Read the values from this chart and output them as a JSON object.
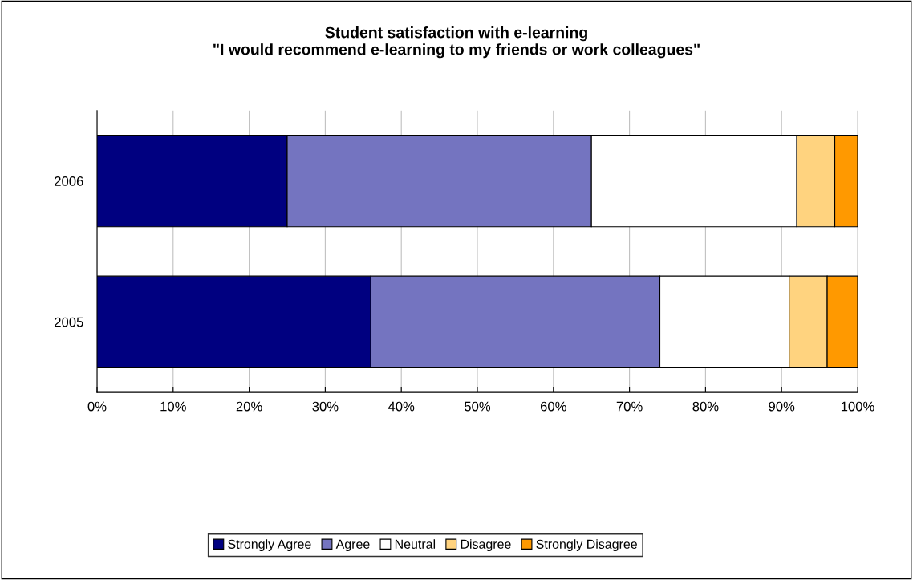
{
  "chart_data": {
    "type": "bar",
    "orientation": "horizontal",
    "stacked": true,
    "title": "Student satisfaction with e-learning\n\"I would recommend e-learning to my friends or work colleagues\"",
    "categories": [
      "2006",
      "2005"
    ],
    "series": [
      {
        "name": "Strongly Agree",
        "color": "#000080",
        "values": [
          25,
          36
        ]
      },
      {
        "name": "Agree",
        "color": "#7474c0",
        "values": [
          40,
          38
        ]
      },
      {
        "name": "Neutral",
        "color": "#ffffff",
        "values": [
          27,
          17
        ]
      },
      {
        "name": "Disagree",
        "color": "#ffd37f",
        "values": [
          5,
          5
        ]
      },
      {
        "name": "Strongly Disagree",
        "color": "#ff9900",
        "values": [
          3,
          4
        ]
      }
    ],
    "xlim": [
      0,
      100
    ],
    "xticks": [
      {
        "value": 0,
        "label": "0%"
      },
      {
        "value": 10,
        "label": "10%"
      },
      {
        "value": 20,
        "label": "20%"
      },
      {
        "value": 30,
        "label": "30%"
      },
      {
        "value": 40,
        "label": "40%"
      },
      {
        "value": 50,
        "label": "50%"
      },
      {
        "value": 60,
        "label": "60%"
      },
      {
        "value": 70,
        "label": "70%"
      },
      {
        "value": 80,
        "label": "80%"
      },
      {
        "value": 90,
        "label": "90%"
      },
      {
        "value": 100,
        "label": "100%"
      }
    ],
    "grid": "x",
    "legend": "bottom"
  }
}
